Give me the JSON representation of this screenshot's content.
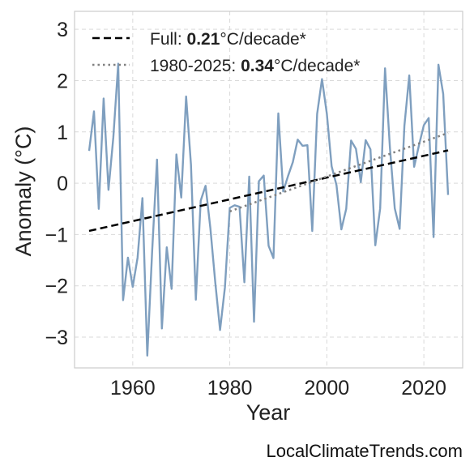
{
  "chart_data": {
    "type": "line",
    "xlabel": "Year",
    "ylabel": "Anomaly (°C)",
    "xlim": [
      1948,
      2028
    ],
    "ylim": [
      -3.6,
      3.35
    ],
    "xticks": [
      1960,
      1980,
      2000,
      2020
    ],
    "yticks": [
      -3,
      -2,
      -1,
      0,
      1,
      2,
      3
    ],
    "ytick_labels": [
      "−3",
      "−2",
      "−1",
      "0",
      "1",
      "2",
      "3"
    ],
    "grid": true,
    "legend_position": "top-left",
    "x": [
      1951,
      1952,
      1953,
      1954,
      1955,
      1956,
      1957,
      1958,
      1959,
      1960,
      1961,
      1962,
      1963,
      1964,
      1965,
      1966,
      1967,
      1968,
      1969,
      1970,
      1971,
      1972,
      1973,
      1974,
      1975,
      1976,
      1977,
      1978,
      1979,
      1980,
      1981,
      1982,
      1983,
      1984,
      1985,
      1986,
      1987,
      1988,
      1989,
      1990,
      1991,
      1992,
      1993,
      1994,
      1995,
      1996,
      1997,
      1998,
      1999,
      2000,
      2001,
      2002,
      2003,
      2004,
      2005,
      2006,
      2007,
      2008,
      2009,
      2010,
      2011,
      2012,
      2013,
      2014,
      2015,
      2016,
      2017,
      2018,
      2019,
      2020,
      2021,
      2022,
      2023,
      2024,
      2025
    ],
    "series": [
      {
        "color": "#7f9fbf",
        "values": [
          0.63,
          1.4,
          -0.5,
          1.65,
          -0.13,
          0.9,
          2.33,
          -2.28,
          -1.45,
          -2.02,
          -1.45,
          -0.29,
          -3.36,
          -1.32,
          0.46,
          -2.83,
          -1.25,
          -2.06,
          0.56,
          -0.28,
          1.69,
          0.36,
          -2.27,
          -0.34,
          -0.05,
          -0.87,
          -1.92,
          -2.86,
          -2.03,
          -0.48,
          -0.43,
          -0.46,
          -1.93,
          0.13,
          -2.7,
          0.04,
          0.15,
          -1.22,
          -1.46,
          1.36,
          -0.16,
          0.14,
          0.41,
          0.85,
          0.73,
          0.74,
          -0.93,
          1.35,
          2.03,
          1.35,
          0.33,
          -0.04,
          -0.9,
          -0.5,
          0.83,
          0.67,
          0.02,
          0.84,
          0.66,
          -1.21,
          -0.49,
          2.24,
          0.7,
          -0.49,
          -0.89,
          1.12,
          2.1,
          0.32,
          0.74,
          1.13,
          1.27,
          -1.05,
          2.31,
          1.74,
          -0.23
        ]
      },
      {
        "name": "Full",
        "style": "dashed",
        "color": "#000000",
        "x": [
          1951,
          2025
        ],
        "values": [
          -0.93,
          0.64
        ]
      },
      {
        "name": "1980-2025",
        "style": "dotted",
        "color": "#808080",
        "x": [
          1980,
          2025
        ],
        "values": [
          -0.55,
          0.98
        ]
      }
    ]
  },
  "legend": {
    "items": [
      {
        "prefix": "Full: ",
        "value": "0.21",
        "suffix": "°C/decade*",
        "color": "#000000",
        "style": "dashed"
      },
      {
        "prefix": "1980-2025: ",
        "value": "0.34",
        "suffix": "°C/decade*",
        "color": "#808080",
        "style": "dotted"
      }
    ]
  },
  "credit": "LocalClimateTrends.com"
}
